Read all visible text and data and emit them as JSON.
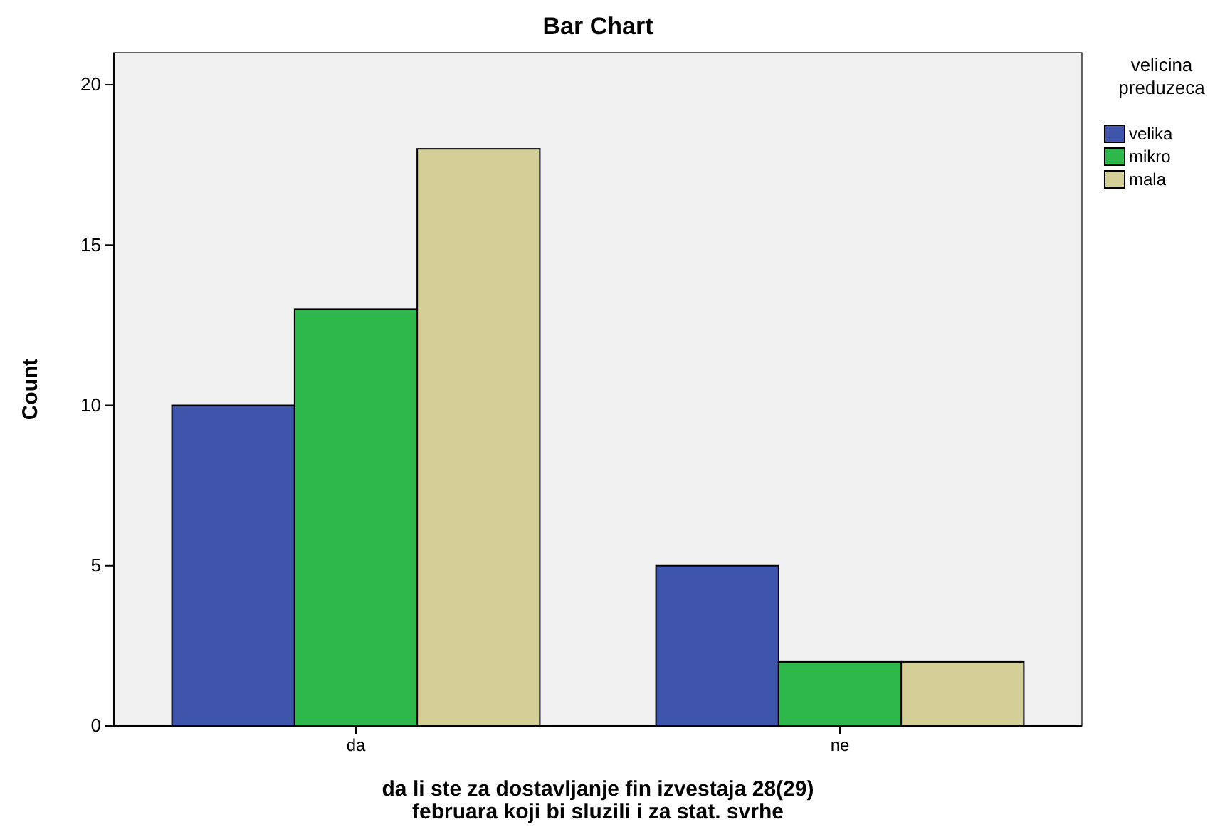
{
  "chart_data": {
    "type": "bar",
    "title": "Bar Chart",
    "xlabel": "da li ste za dostavljanje fin izvestaja 28(29) februara koji bi sluzili i za stat. svrhe",
    "ylabel": "Count",
    "legend_title": "velicina preduzeca",
    "legend": "top right",
    "categories": [
      "da",
      "ne"
    ],
    "series": [
      {
        "name": "velika",
        "color": "#3e55ab",
        "values": [
          10,
          5
        ]
      },
      {
        "name": "mikro",
        "color": "#2eb74a",
        "values": [
          13,
          2
        ]
      },
      {
        "name": "mala",
        "color": "#d4cf96",
        "values": [
          18,
          2
        ]
      }
    ],
    "ylim": [
      0,
      21
    ],
    "yticks": [
      0,
      5,
      10,
      15,
      20
    ]
  }
}
